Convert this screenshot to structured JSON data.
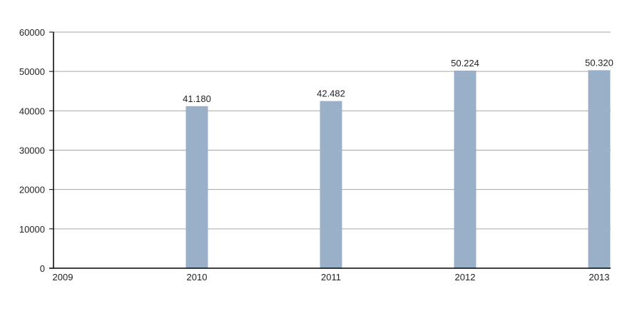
{
  "chart_data": {
    "type": "bar",
    "title": "",
    "xlabel": "",
    "ylabel": "",
    "categories": [
      "2009",
      "2010",
      "2011",
      "2012",
      "2013"
    ],
    "values": [
      null,
      41180,
      42482,
      50224,
      50320
    ],
    "data_labels": [
      "",
      "41.180",
      "42.482",
      "50.224",
      "50.320"
    ],
    "ylim": [
      0,
      60000
    ],
    "yticks": [
      0,
      10000,
      20000,
      30000,
      40000,
      50000,
      60000
    ],
    "ytick_labels": [
      "0",
      "10000",
      "20000",
      "30000",
      "40000",
      "50000",
      "60000"
    ],
    "grid": true,
    "legend": "none",
    "colors": {
      "bar": "#99b0c8",
      "grid": "#a6a6a6",
      "axis": "#000000",
      "text": "#222222"
    }
  }
}
